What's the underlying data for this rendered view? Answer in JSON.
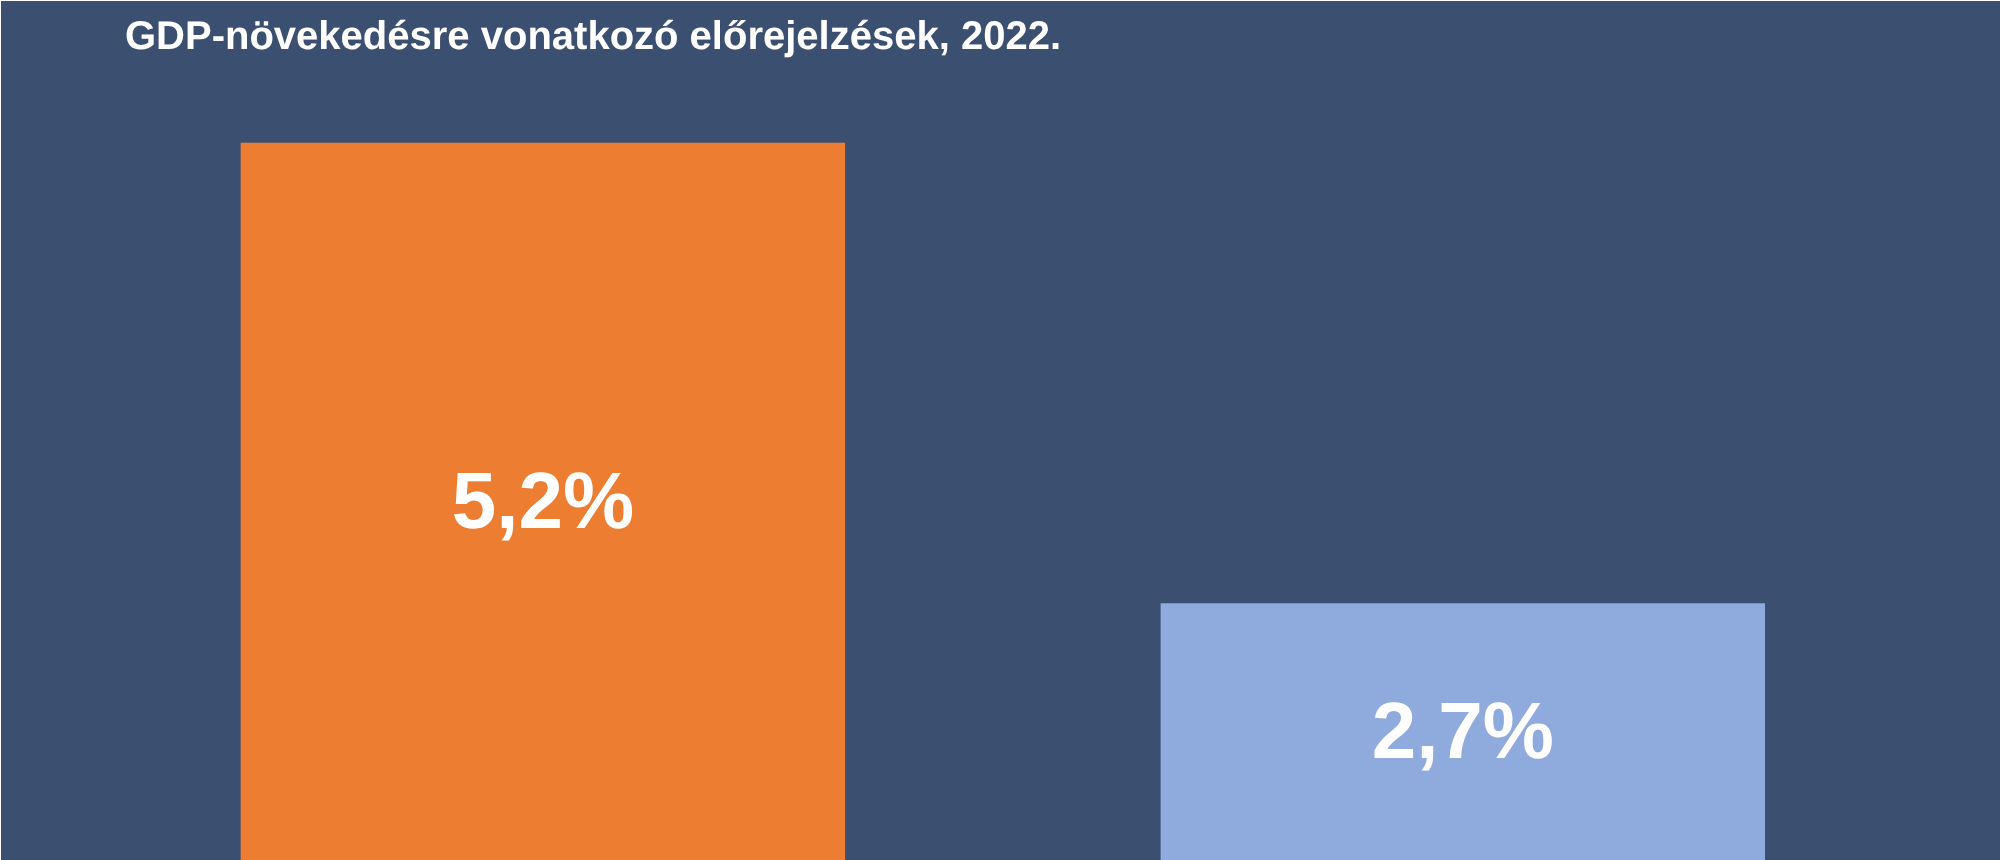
{
  "chart_data": {
    "type": "bar",
    "title": "GDP-növekedésre vonatkozó előrejelzések, 2022.",
    "categories": [
      null,
      null
    ],
    "values": [
      5.2,
      2.7
    ],
    "colors": [
      "#ed7d31",
      "#8faadc"
    ],
    "value_labels": [
      "5,2%",
      "2,7%"
    ],
    "ylim": [
      1.3,
      5.6
    ],
    "tick_labels": false,
    "grid": false
  }
}
